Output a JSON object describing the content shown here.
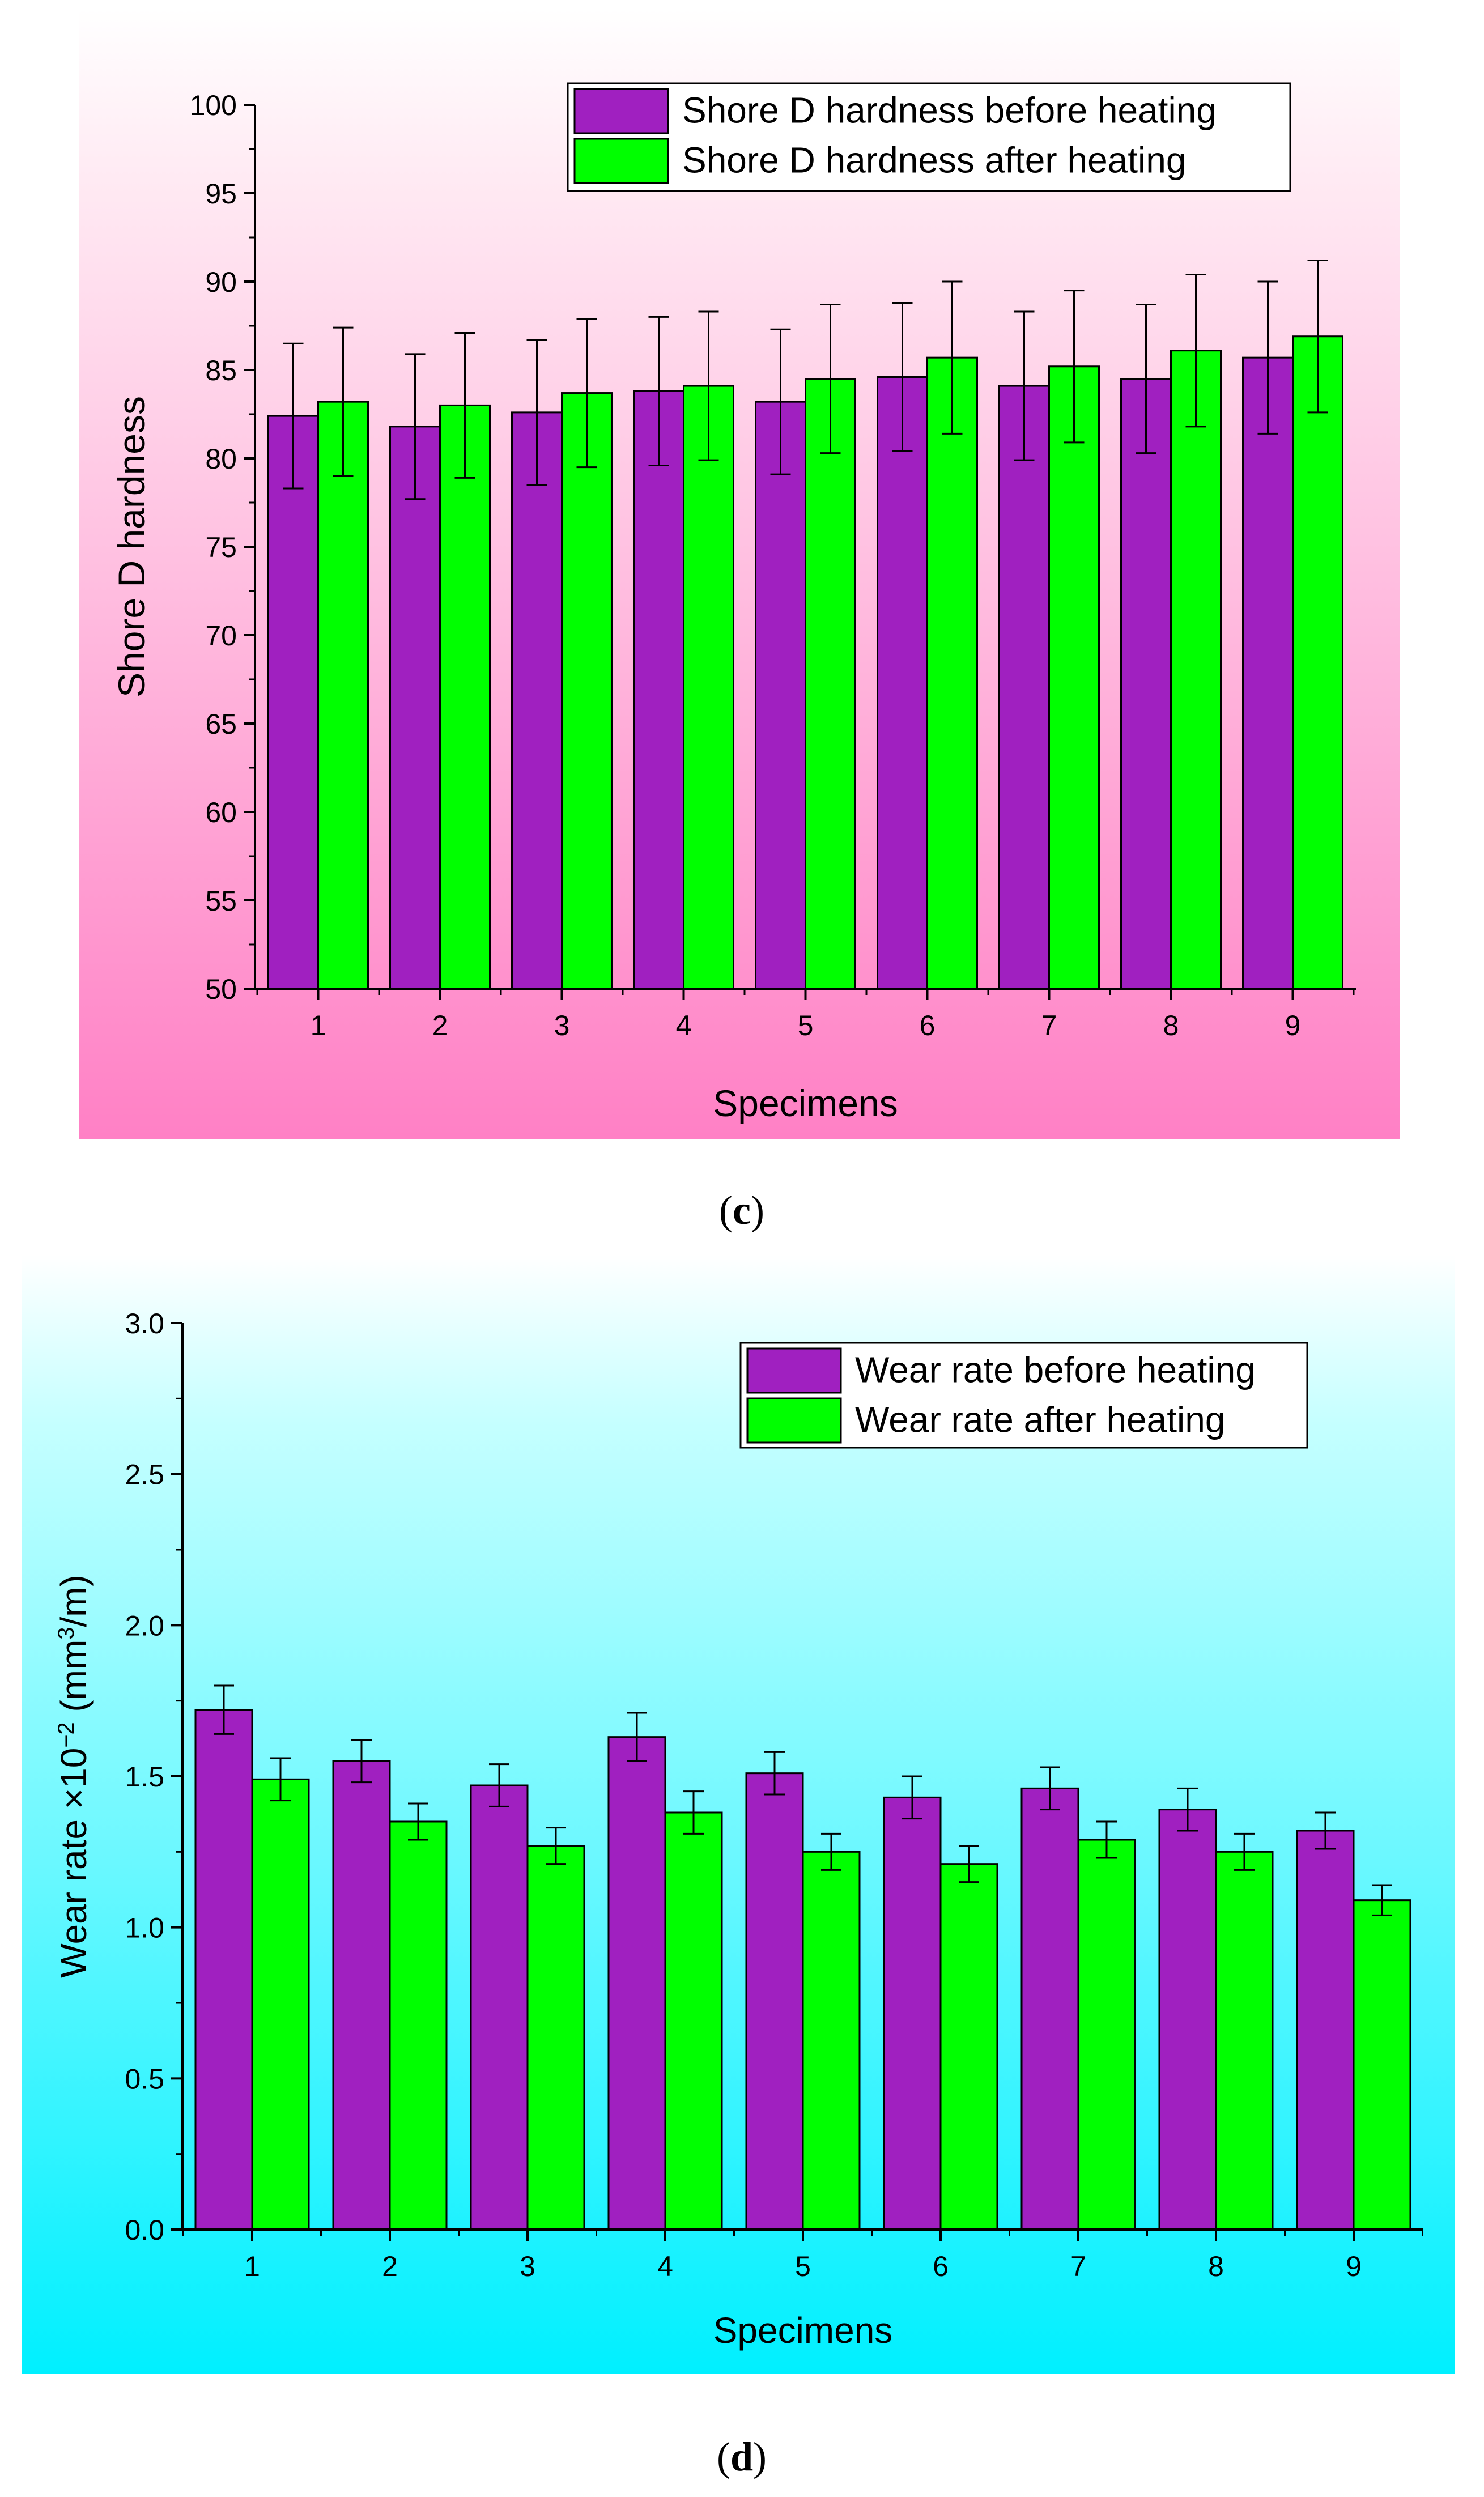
{
  "charts": [
    {
      "panel_label": "c",
      "background_colors": [
        "#ffffff",
        "#ffeaf3",
        "#ff80c5"
      ],
      "legend_position": "top-right",
      "chart_data": {
        "type": "bar",
        "title": "",
        "xlabel": "Specimens",
        "ylabel": "Shore D hardness",
        "categories": [
          "1",
          "2",
          "3",
          "4",
          "5",
          "6",
          "7",
          "8",
          "9"
        ],
        "ylim": [
          50,
          100
        ],
        "yticks": [
          "50",
          "55",
          "60",
          "65",
          "70",
          "75",
          "80",
          "85",
          "90",
          "95",
          "100"
        ],
        "series": [
          {
            "name": "Shore D hardness before heating",
            "color": "#a020c0",
            "values": [
              82.4,
              81.8,
              82.6,
              83.8,
              83.2,
              84.6,
              84.1,
              84.5,
              85.7
            ],
            "errors": [
              4.1,
              4.1,
              4.1,
              4.2,
              4.1,
              4.2,
              4.2,
              4.2,
              4.3
            ]
          },
          {
            "name": "Shore D hardness after heating",
            "color": "#00ff00",
            "values": [
              83.2,
              83.0,
              83.7,
              84.1,
              84.5,
              85.7,
              85.2,
              86.1,
              86.9
            ],
            "errors": [
              4.2,
              4.1,
              4.2,
              4.2,
              4.2,
              4.3,
              4.3,
              4.3,
              4.3
            ]
          }
        ],
        "grid": false
      }
    },
    {
      "panel_label": "d",
      "background_colors": [
        "#ffffff",
        "#c5ffff",
        "#00f0ff"
      ],
      "legend_position": "top-right",
      "chart_data": {
        "type": "bar",
        "title": "",
        "xlabel": "Specimens",
        "ylabel": "Wear rate ×10−2 (mm3/m)",
        "ylabel_parts": {
          "main": "Wear rate ×10",
          "exp": "−2",
          "unit_open": " (mm",
          "unit_exp": "3",
          "unit_close": "/m)"
        },
        "categories": [
          "1",
          "2",
          "3",
          "4",
          "5",
          "6",
          "7",
          "8",
          "9"
        ],
        "ylim": [
          0,
          3
        ],
        "yticks": [
          "0.0",
          "0.5",
          "1.0",
          "1.5",
          "2.0",
          "2.5",
          "3.0"
        ],
        "series": [
          {
            "name": "Wear rate before heating",
            "color": "#a020c0",
            "values": [
              1.72,
              1.55,
              1.47,
              1.63,
              1.51,
              1.43,
              1.46,
              1.39,
              1.32
            ],
            "errors": [
              0.08,
              0.07,
              0.07,
              0.08,
              0.07,
              0.07,
              0.07,
              0.07,
              0.06
            ]
          },
          {
            "name": "Wear rate after heating",
            "color": "#00ff00",
            "values": [
              1.49,
              1.35,
              1.27,
              1.38,
              1.25,
              1.21,
              1.29,
              1.25,
              1.09
            ],
            "errors": [
              0.07,
              0.06,
              0.06,
              0.07,
              0.06,
              0.06,
              0.06,
              0.06,
              0.05
            ]
          }
        ],
        "grid": false
      }
    }
  ]
}
